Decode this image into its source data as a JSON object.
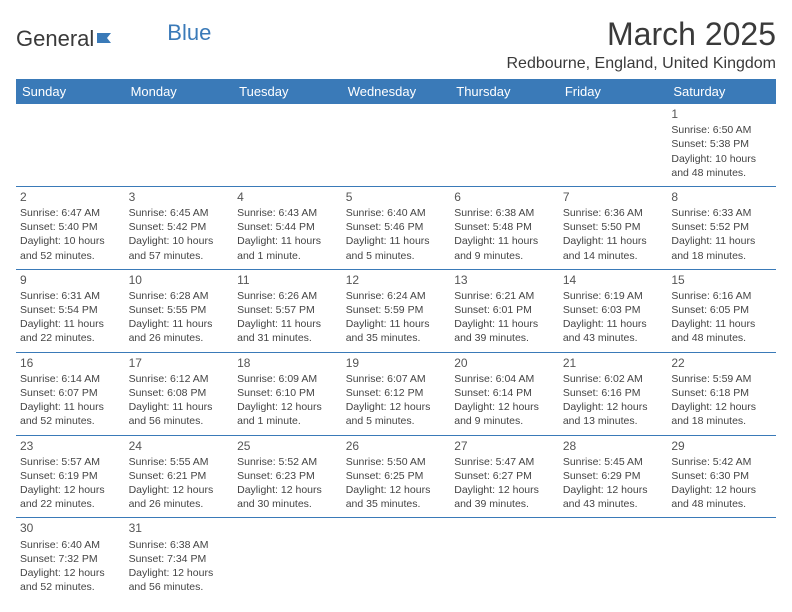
{
  "logo": {
    "t1": "General",
    "t2": "Blue"
  },
  "title": "March 2025",
  "location": "Redbourne, England, United Kingdom",
  "colors": {
    "header_bg": "#3a7ab8",
    "header_text": "#ffffff",
    "rule": "#3a7ab8",
    "text": "#444444",
    "title_text": "#3a3a3a"
  },
  "typography": {
    "title_fontsize": 32,
    "location_fontsize": 16,
    "dayheader_fontsize": 13,
    "cell_fontsize": 10.5,
    "daynum_fontsize": 12
  },
  "calendar": {
    "type": "table",
    "columns": [
      "Sunday",
      "Monday",
      "Tuesday",
      "Wednesday",
      "Thursday",
      "Friday",
      "Saturday"
    ],
    "rows": [
      [
        null,
        null,
        null,
        null,
        null,
        null,
        {
          "n": "1",
          "sr": "6:50 AM",
          "ss": "5:38 PM",
          "dl": "10 hours and 48 minutes."
        }
      ],
      [
        {
          "n": "2",
          "sr": "6:47 AM",
          "ss": "5:40 PM",
          "dl": "10 hours and 52 minutes."
        },
        {
          "n": "3",
          "sr": "6:45 AM",
          "ss": "5:42 PM",
          "dl": "10 hours and 57 minutes."
        },
        {
          "n": "4",
          "sr": "6:43 AM",
          "ss": "5:44 PM",
          "dl": "11 hours and 1 minute."
        },
        {
          "n": "5",
          "sr": "6:40 AM",
          "ss": "5:46 PM",
          "dl": "11 hours and 5 minutes."
        },
        {
          "n": "6",
          "sr": "6:38 AM",
          "ss": "5:48 PM",
          "dl": "11 hours and 9 minutes."
        },
        {
          "n": "7",
          "sr": "6:36 AM",
          "ss": "5:50 PM",
          "dl": "11 hours and 14 minutes."
        },
        {
          "n": "8",
          "sr": "6:33 AM",
          "ss": "5:52 PM",
          "dl": "11 hours and 18 minutes."
        }
      ],
      [
        {
          "n": "9",
          "sr": "6:31 AM",
          "ss": "5:54 PM",
          "dl": "11 hours and 22 minutes."
        },
        {
          "n": "10",
          "sr": "6:28 AM",
          "ss": "5:55 PM",
          "dl": "11 hours and 26 minutes."
        },
        {
          "n": "11",
          "sr": "6:26 AM",
          "ss": "5:57 PM",
          "dl": "11 hours and 31 minutes."
        },
        {
          "n": "12",
          "sr": "6:24 AM",
          "ss": "5:59 PM",
          "dl": "11 hours and 35 minutes."
        },
        {
          "n": "13",
          "sr": "6:21 AM",
          "ss": "6:01 PM",
          "dl": "11 hours and 39 minutes."
        },
        {
          "n": "14",
          "sr": "6:19 AM",
          "ss": "6:03 PM",
          "dl": "11 hours and 43 minutes."
        },
        {
          "n": "15",
          "sr": "6:16 AM",
          "ss": "6:05 PM",
          "dl": "11 hours and 48 minutes."
        }
      ],
      [
        {
          "n": "16",
          "sr": "6:14 AM",
          "ss": "6:07 PM",
          "dl": "11 hours and 52 minutes."
        },
        {
          "n": "17",
          "sr": "6:12 AM",
          "ss": "6:08 PM",
          "dl": "11 hours and 56 minutes."
        },
        {
          "n": "18",
          "sr": "6:09 AM",
          "ss": "6:10 PM",
          "dl": "12 hours and 1 minute."
        },
        {
          "n": "19",
          "sr": "6:07 AM",
          "ss": "6:12 PM",
          "dl": "12 hours and 5 minutes."
        },
        {
          "n": "20",
          "sr": "6:04 AM",
          "ss": "6:14 PM",
          "dl": "12 hours and 9 minutes."
        },
        {
          "n": "21",
          "sr": "6:02 AM",
          "ss": "6:16 PM",
          "dl": "12 hours and 13 minutes."
        },
        {
          "n": "22",
          "sr": "5:59 AM",
          "ss": "6:18 PM",
          "dl": "12 hours and 18 minutes."
        }
      ],
      [
        {
          "n": "23",
          "sr": "5:57 AM",
          "ss": "6:19 PM",
          "dl": "12 hours and 22 minutes."
        },
        {
          "n": "24",
          "sr": "5:55 AM",
          "ss": "6:21 PM",
          "dl": "12 hours and 26 minutes."
        },
        {
          "n": "25",
          "sr": "5:52 AM",
          "ss": "6:23 PM",
          "dl": "12 hours and 30 minutes."
        },
        {
          "n": "26",
          "sr": "5:50 AM",
          "ss": "6:25 PM",
          "dl": "12 hours and 35 minutes."
        },
        {
          "n": "27",
          "sr": "5:47 AM",
          "ss": "6:27 PM",
          "dl": "12 hours and 39 minutes."
        },
        {
          "n": "28",
          "sr": "5:45 AM",
          "ss": "6:29 PM",
          "dl": "12 hours and 43 minutes."
        },
        {
          "n": "29",
          "sr": "5:42 AM",
          "ss": "6:30 PM",
          "dl": "12 hours and 48 minutes."
        }
      ],
      [
        {
          "n": "30",
          "sr": "6:40 AM",
          "ss": "7:32 PM",
          "dl": "12 hours and 52 minutes."
        },
        {
          "n": "31",
          "sr": "6:38 AM",
          "ss": "7:34 PM",
          "dl": "12 hours and 56 minutes."
        },
        null,
        null,
        null,
        null,
        null
      ]
    ]
  },
  "labels": {
    "sunrise": "Sunrise: ",
    "sunset": "Sunset: ",
    "daylight": "Daylight: "
  }
}
